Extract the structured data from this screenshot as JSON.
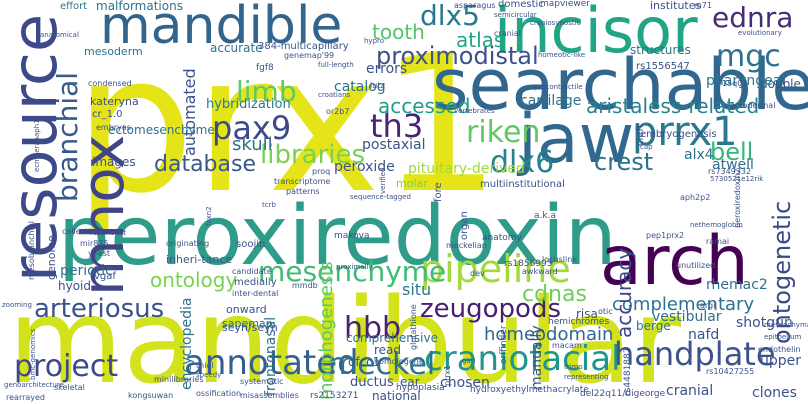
{
  "words": [
    {
      "text": "prx1",
      "color": "#e5e419"
    },
    {
      "text": "peroxiredoxin",
      "color": "#2e9c89"
    },
    {
      "text": "mandibular",
      "color": "#d2e21b"
    },
    {
      "text": "searchable",
      "color": "#31668e"
    },
    {
      "text": "incisor",
      "color": "#21a585"
    },
    {
      "text": "mandible",
      "color": "#32658e"
    },
    {
      "text": "jaw",
      "color": "#30688e"
    },
    {
      "text": "resource",
      "color": "#3e4989"
    },
    {
      "text": "arch",
      "color": "#440154"
    },
    {
      "text": "mhox",
      "color": "#414487"
    },
    {
      "text": "prrx1",
      "color": "#2a788e"
    },
    {
      "text": "pipeline",
      "color": "#a2da37"
    },
    {
      "text": "craniofacial",
      "color": "#1f968b"
    },
    {
      "text": "annotated",
      "color": "#355f8d"
    },
    {
      "text": "project",
      "color": "#3e4989"
    },
    {
      "text": "meckel",
      "color": "#2d718e"
    },
    {
      "text": "handplate",
      "color": "#3b528b"
    },
    {
      "text": "mesenchyme",
      "color": "#3dbc74"
    },
    {
      "text": "riken",
      "color": "#5ec962"
    },
    {
      "text": "dlx6",
      "color": "#26828e"
    },
    {
      "text": "pax9",
      "color": "#3e4989"
    },
    {
      "text": "th3",
      "color": "#482374"
    },
    {
      "text": "dlx5",
      "color": "#2a788e"
    },
    {
      "text": "mgc",
      "color": "#2c728e"
    },
    {
      "text": "ednra",
      "color": "#472c7a"
    },
    {
      "text": "tooth",
      "color": "#52c569"
    },
    {
      "text": "proximodistal",
      "color": "#3b528b"
    },
    {
      "text": "limb",
      "color": "#5ec962"
    },
    {
      "text": "branchial",
      "color": "#38598c"
    },
    {
      "text": "arteriosus",
      "color": "#3b528b"
    },
    {
      "text": "zeugopods",
      "color": "#481f70"
    },
    {
      "text": "hbb",
      "color": "#482173"
    },
    {
      "text": "cdnas",
      "color": "#6ccd5a"
    },
    {
      "text": "ontology",
      "color": "#7ad151"
    },
    {
      "text": "libraries",
      "color": "#7ad151"
    },
    {
      "text": "database",
      "color": "#38598c"
    },
    {
      "text": "crest",
      "color": "#2c728e"
    },
    {
      "text": "bell",
      "color": "#35b779"
    },
    {
      "text": "accessed",
      "color": "#1f9e89"
    },
    {
      "text": "skull",
      "color": "#2c728e"
    },
    {
      "text": "atlas",
      "color": "#20a386"
    },
    {
      "text": "aristaless-related",
      "color": "#25848e"
    },
    {
      "text": "ontogenetic",
      "color": "#3e4989"
    },
    {
      "text": "complementary",
      "color": "#2c728e"
    },
    {
      "text": "homeodomain",
      "color": "#31668e"
    },
    {
      "text": "accuracy",
      "color": "#3e4989"
    },
    {
      "text": "situ",
      "color": "#2a788e"
    },
    {
      "text": "morphogenesis",
      "color": "#5ec962"
    },
    {
      "text": "hybridization",
      "color": "#2a788e"
    },
    {
      "text": "automated",
      "color": "#3b528b"
    },
    {
      "text": "periotic",
      "color": "#2c728e"
    },
    {
      "text": "pharyngeal",
      "color": "#2a788e"
    },
    {
      "text": "catalog",
      "color": "#2c728e"
    },
    {
      "text": "errors",
      "color": "#3b528b"
    },
    {
      "text": "cartilage",
      "color": "#2c728e"
    },
    {
      "text": "alx4",
      "color": "#2c728e"
    },
    {
      "text": "postaxial",
      "color": "#3b528b"
    },
    {
      "text": "peroxide",
      "color": "#3b528b"
    },
    {
      "text": "pituitary-derived",
      "color": "#a0da39"
    },
    {
      "text": "atwell",
      "color": "#2c728e"
    },
    {
      "text": "manually",
      "color": "#3b528b"
    },
    {
      "text": "frontonasal",
      "color": "#2c728e"
    },
    {
      "text": "encyclopedia",
      "color": "#2c728e"
    },
    {
      "text": "shotgun",
      "color": "#3b528b"
    },
    {
      "text": "vestibular",
      "color": "#2c728e"
    },
    {
      "text": "rhemac2",
      "color": "#2c728e"
    },
    {
      "text": "berge",
      "color": "#2c728e"
    },
    {
      "text": "nafd",
      "color": "#3b528b"
    },
    {
      "text": "upper",
      "color": "#3b528b"
    },
    {
      "text": "clones",
      "color": "#3b528b"
    },
    {
      "text": "cranial",
      "color": "#3b528b"
    },
    {
      "text": "chosen",
      "color": "#3b528b"
    },
    {
      "text": "ear",
      "color": "#3b528b"
    },
    {
      "text": "ductus",
      "color": "#3b528b"
    },
    {
      "text": "national",
      "color": "#3b528b"
    },
    {
      "text": "read",
      "color": "#3b528b"
    },
    {
      "text": "comprehensive",
      "color": "#2c728e"
    },
    {
      "text": "ofcc1",
      "color": "#3b528b"
    },
    {
      "text": "risa",
      "color": "#3b528b"
    },
    {
      "text": "malformations",
      "color": "#2c728e"
    },
    {
      "text": "effort",
      "color": "#2c728e"
    },
    {
      "text": "structures",
      "color": "#2c728e"
    },
    {
      "text": "double",
      "color": "#3b528b"
    },
    {
      "text": "accurate",
      "color": "#2c728e"
    },
    {
      "text": "institutes",
      "color": "#3b528b"
    },
    {
      "text": "mesoderm",
      "color": "#2c728e"
    },
    {
      "text": "ectomesenchyme",
      "color": "#2c728e"
    },
    {
      "text": "hyoid",
      "color": "#3b528b"
    },
    {
      "text": "genome",
      "color": "#3b528b"
    },
    {
      "text": "images",
      "color": "#3b528b"
    },
    {
      "text": "onward",
      "color": "#3b528b"
    },
    {
      "text": "sapemap",
      "color": "#2c728e"
    },
    {
      "text": "inheri-tance",
      "color": "#3b528b"
    },
    {
      "text": "soojin",
      "color": "#3b528b"
    },
    {
      "text": "domestic",
      "color": "#3b528b"
    },
    {
      "text": "kateryna",
      "color": "#3b528b"
    },
    {
      "text": "molar",
      "color": "#7ad151"
    },
    {
      "text": "multiinstitutional",
      "color": "#3b528b"
    },
    {
      "text": "embryogenesis",
      "color": "#3b528b"
    },
    {
      "text": "mapviewer",
      "color": "#3b528b"
    },
    {
      "text": "fore",
      "color": "#3b528b"
    },
    {
      "text": "organ",
      "color": "#3b528b"
    },
    {
      "text": "makova",
      "color": "#3b528b"
    },
    {
      "text": "ectodermal",
      "color": "#3b528b"
    },
    {
      "text": "cleft",
      "color": "#3b528b"
    },
    {
      "text": "rs1556547",
      "color": "#3b528b"
    },
    {
      "text": "rs7349332",
      "color": "#3b528b"
    },
    {
      "text": "rs1856995",
      "color": "#3b528b"
    },
    {
      "text": "rs4481887",
      "color": "#3b528b"
    },
    {
      "text": "rs10427255",
      "color": "#3b528b"
    },
    {
      "text": "rs2153271",
      "color": "#3b528b"
    },
    {
      "text": "mesobranchial",
      "color": "#3b528b"
    },
    {
      "text": "seyn/seyn",
      "color": "#3b528b"
    },
    {
      "text": "orffinder",
      "color": "#3b528b"
    },
    {
      "text": "hemichromes",
      "color": "#3b528b"
    },
    {
      "text": "anatomy",
      "color": "#3b528b"
    },
    {
      "text": "meckelian",
      "color": "#3b528b"
    },
    {
      "text": "hypoplasia",
      "color": "#3b528b"
    },
    {
      "text": "hydroxyethylmethacrylate",
      "color": "#3b528b"
    },
    {
      "text": "del22q11/digeorge",
      "color": "#3b528b"
    },
    {
      "text": "systematic",
      "color": "#3b528b"
    },
    {
      "text": "ossification",
      "color": "#3b528b"
    },
    {
      "text": "misassemblies",
      "color": "#3b528b"
    },
    {
      "text": "kongsuwan",
      "color": "#3b528b"
    },
    {
      "text": "rearrayed",
      "color": "#3b528b"
    },
    {
      "text": "skeletal",
      "color": "#3b528b"
    },
    {
      "text": "minilibraries",
      "color": "#3b528b"
    },
    {
      "text": "medially",
      "color": "#3b528b"
    },
    {
      "text": "inter-dental",
      "color": "#3b528b"
    },
    {
      "text": "mmdb",
      "color": "#3b528b"
    },
    {
      "text": "thiol",
      "color": "#3b528b"
    },
    {
      "text": "speedy",
      "color": "#3b528b"
    },
    {
      "text": "vgaf",
      "color": "#3b528b"
    },
    {
      "text": "mir875",
      "color": "#3b528b"
    },
    {
      "text": "collection",
      "color": "#3b528b"
    },
    {
      "text": "zooming",
      "color": "#3b528b"
    },
    {
      "text": "proq",
      "color": "#3b528b"
    },
    {
      "text": "transcriptome",
      "color": "#3b528b"
    },
    {
      "text": "prrx1",
      "color": "#3b528b"
    },
    {
      "text": "originating",
      "color": "#3b528b"
    },
    {
      "text": "pep1prx2",
      "color": "#3b528b"
    },
    {
      "text": "glutathione",
      "color": "#3b528b"
    },
    {
      "text": "locuslink",
      "color": "#3b528b"
    },
    {
      "text": "awkward",
      "color": "#3b528b"
    },
    {
      "text": "homologene",
      "color": "#3b528b"
    },
    {
      "text": "macam",
      "color": "#3b528b"
    },
    {
      "text": "unutilized",
      "color": "#3b528b"
    },
    {
      "text": "ramai",
      "color": "#3b528b"
    },
    {
      "text": "argi",
      "color": "#3b528b"
    },
    {
      "text": "endothelin",
      "color": "#3b528b"
    },
    {
      "text": "epithelium",
      "color": "#3b528b"
    },
    {
      "text": "mesenchymal",
      "color": "#3b528b"
    },
    {
      "text": "otic",
      "color": "#3b528b"
    },
    {
      "text": "candidate",
      "color": "#3b528b"
    },
    {
      "text": "proximally",
      "color": "#3b528b"
    },
    {
      "text": "ecmoeraaaph1",
      "color": "#3b528b"
    },
    {
      "text": "fgf8",
      "color": "#3b528b"
    },
    {
      "text": "lutz",
      "color": "#3b528b"
    },
    {
      "text": "or2b7",
      "color": "#3b528b"
    },
    {
      "text": "croatians",
      "color": "#3b528b"
    },
    {
      "text": "vertebrates",
      "color": "#3b528b"
    },
    {
      "text": "precontractile",
      "color": "#3b528b"
    },
    {
      "text": "patterns",
      "color": "#3b528b"
    },
    {
      "text": "sequence-tagged",
      "color": "#3b528b"
    },
    {
      "text": "verified",
      "color": "#3b528b"
    },
    {
      "text": "dev",
      "color": "#3b528b"
    },
    {
      "text": "foxn2",
      "color": "#3b528b"
    },
    {
      "text": "cr_1.0",
      "color": "#3b528b"
    },
    {
      "text": "embryos",
      "color": "#3b528b"
    },
    {
      "text": "condensed",
      "color": "#3b528b"
    },
    {
      "text": "anatomical",
      "color": "#3b528b"
    },
    {
      "text": "384-multicapillary",
      "color": "#3b528b"
    },
    {
      "text": "genemap'99",
      "color": "#3b528b"
    },
    {
      "text": "full-length",
      "color": "#3b528b"
    },
    {
      "text": "semicircular",
      "color": "#3b528b"
    },
    {
      "text": "asparagus",
      "color": "#3b528b"
    },
    {
      "text": "craniosynostic",
      "color": "#3b528b"
    },
    {
      "text": "cranial",
      "color": "#3b528b"
    },
    {
      "text": "hypro",
      "color": "#3b528b"
    },
    {
      "text": "homeotic-like",
      "color": "#3b528b"
    },
    {
      "text": "15q01",
      "color": "#3b528b"
    },
    {
      "text": "m71",
      "color": "#3b528b"
    },
    {
      "text": "aph2p2",
      "color": "#3b528b"
    },
    {
      "text": "5730521e12rik",
      "color": "#3b528b"
    },
    {
      "text": "peroxiredoxin2",
      "color": "#3b528b"
    },
    {
      "text": "tcrb",
      "color": "#3b528b"
    },
    {
      "text": "redundant",
      "color": "#3b528b"
    },
    {
      "text": "y'-est",
      "color": "#3b528b"
    },
    {
      "text": "bmc-genomics",
      "color": "#3b528b"
    },
    {
      "text": "trimo",
      "color": "#3b528b"
    },
    {
      "text": "cap",
      "color": "#3b528b"
    },
    {
      "text": "a.k.a",
      "color": "#3b528b"
    },
    {
      "text": "representing",
      "color": "#3b528b"
    },
    {
      "text": "gari",
      "color": "#3b528b"
    },
    {
      "text": "nethemoglobin",
      "color": "#3b528b"
    },
    {
      "text": "genoarchitecture",
      "color": "#3b528b"
    },
    {
      "text": "evolutionary",
      "color": "#3b528b"
    }
  ]
}
